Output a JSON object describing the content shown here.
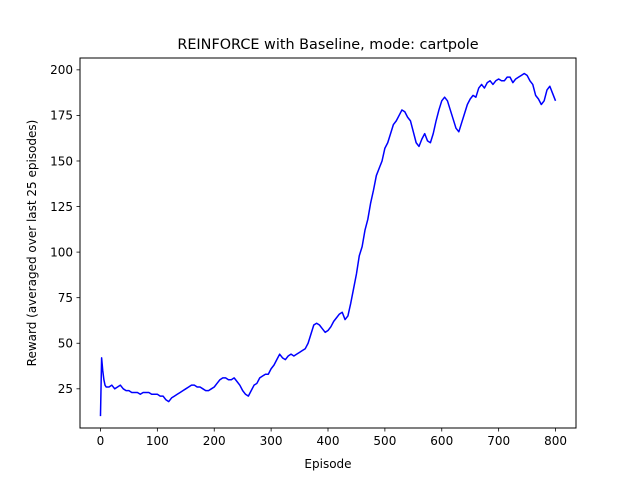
{
  "chart_data": {
    "type": "line",
    "title": "REINFORCE with Baseline, mode: cartpole",
    "xlabel": "Episode",
    "ylabel": "Reward (averaged over last 25 episodes)",
    "xlim": [
      -36,
      836
    ],
    "ylim": [
      3.5,
      206.5
    ],
    "xticks": [
      0,
      100,
      200,
      300,
      400,
      500,
      600,
      700,
      800
    ],
    "yticks": [
      25,
      50,
      75,
      100,
      125,
      150,
      175,
      200
    ],
    "grid": false,
    "legend": "none",
    "series": [
      {
        "color": "#0000ff",
        "x": [
          0,
          2,
          4,
          6,
          8,
          10,
          15,
          20,
          25,
          30,
          35,
          40,
          45,
          50,
          55,
          60,
          65,
          70,
          75,
          80,
          85,
          90,
          95,
          100,
          105,
          110,
          115,
          120,
          125,
          130,
          135,
          140,
          145,
          150,
          155,
          160,
          165,
          170,
          175,
          180,
          185,
          190,
          195,
          200,
          205,
          210,
          215,
          220,
          225,
          230,
          235,
          240,
          245,
          250,
          255,
          260,
          265,
          270,
          275,
          280,
          285,
          290,
          295,
          300,
          305,
          310,
          315,
          320,
          325,
          330,
          335,
          340,
          345,
          350,
          355,
          360,
          365,
          370,
          375,
          380,
          385,
          390,
          395,
          400,
          405,
          410,
          415,
          420,
          425,
          430,
          435,
          440,
          445,
          450,
          455,
          460,
          465,
          470,
          475,
          480,
          485,
          490,
          495,
          500,
          505,
          510,
          515,
          520,
          525,
          530,
          535,
          540,
          545,
          550,
          555,
          560,
          565,
          570,
          575,
          580,
          585,
          590,
          595,
          600,
          605,
          610,
          615,
          620,
          625,
          630,
          635,
          640,
          645,
          650,
          655,
          660,
          665,
          670,
          675,
          680,
          685,
          690,
          695,
          700,
          705,
          710,
          715,
          720,
          725,
          730,
          735,
          740,
          745,
          750,
          755,
          760,
          765,
          770,
          775,
          780,
          785,
          790,
          795,
          800
        ],
        "y": [
          10,
          42,
          35,
          30,
          27,
          26,
          26,
          27,
          25,
          26,
          27,
          25,
          24,
          24,
          23,
          23,
          23,
          22,
          23,
          23,
          23,
          22,
          22,
          22,
          21,
          21,
          19,
          18,
          20,
          21,
          22,
          23,
          24,
          25,
          26,
          27,
          27,
          26,
          26,
          25,
          24,
          24,
          25,
          26,
          28,
          30,
          31,
          31,
          30,
          30,
          31,
          29,
          27,
          24,
          22,
          21,
          24,
          27,
          28,
          31,
          32,
          33,
          33,
          36,
          38,
          41,
          44,
          42,
          41,
          43,
          44,
          43,
          44,
          45,
          46,
          47,
          50,
          55,
          60,
          61,
          60,
          58,
          56,
          57,
          59,
          62,
          64,
          66,
          67,
          63,
          65,
          72,
          80,
          88,
          98,
          103,
          112,
          118,
          127,
          134,
          142,
          146,
          150,
          157,
          160,
          165,
          170,
          172,
          175,
          178,
          177,
          174,
          172,
          166,
          160,
          158,
          162,
          165,
          161,
          160,
          165,
          172,
          178,
          183,
          185,
          183,
          178,
          173,
          168,
          166,
          171,
          176,
          181,
          184,
          186,
          185,
          190,
          192,
          190,
          193,
          194,
          192,
          194,
          195,
          194,
          194,
          196,
          196,
          193,
          195,
          196,
          197,
          198,
          197,
          194,
          192,
          186,
          184,
          181,
          183,
          189,
          191,
          187,
          183
        ]
      }
    ]
  }
}
